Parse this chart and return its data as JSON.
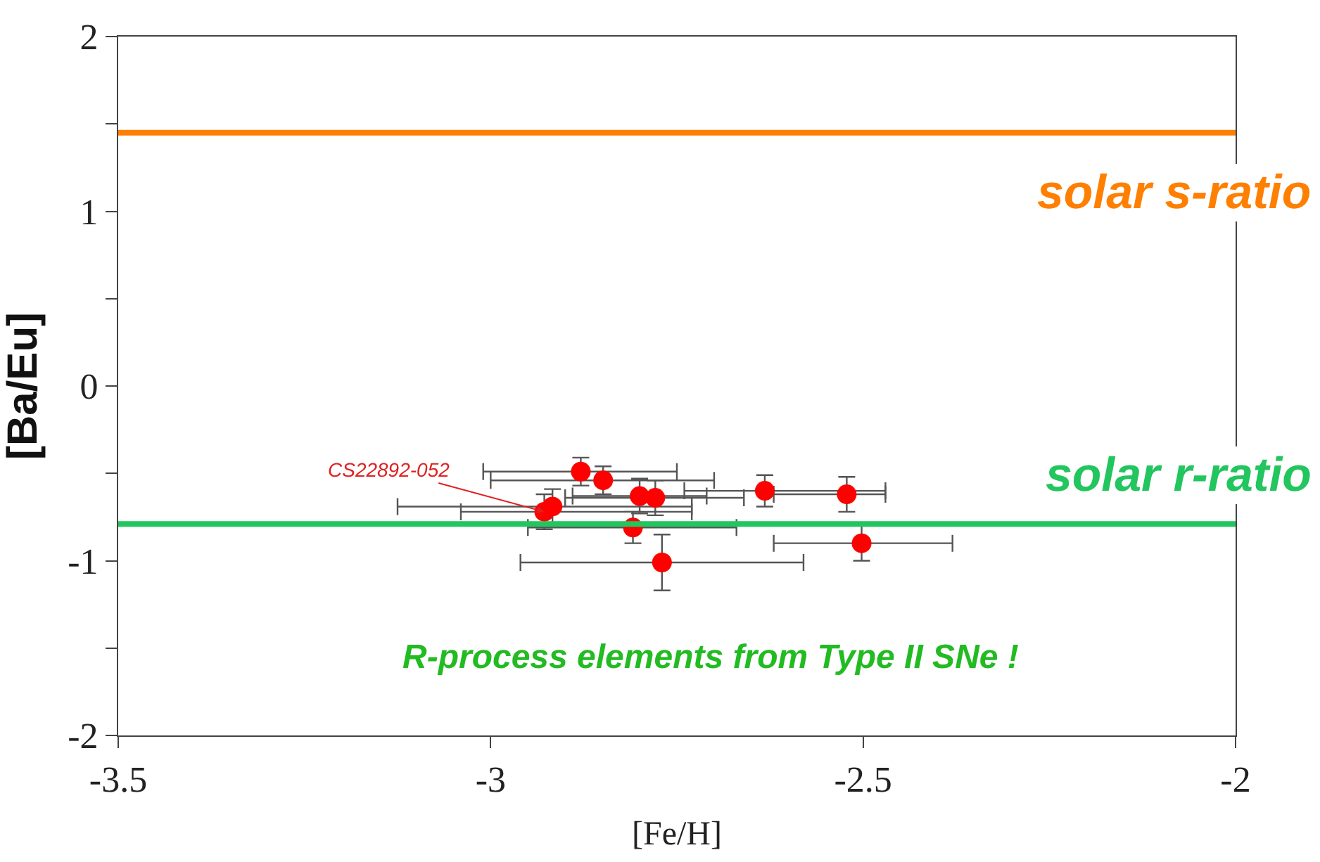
{
  "chart_data": {
    "type": "scatter",
    "xlabel": "[Fe/H]",
    "ylabel": "[Ba/Eu]",
    "x": [
      -2.879,
      -2.849,
      -2.8,
      -2.779,
      -2.928,
      -2.917,
      -2.809,
      -2.77,
      -2.632,
      -2.522,
      -2.502
    ],
    "values": [
      -0.49,
      -0.54,
      -0.63,
      -0.64,
      -0.72,
      -0.69,
      -0.81,
      -1.01,
      -0.6,
      -0.62,
      -0.9
    ],
    "errors": [
      0.08,
      0.08,
      0.1,
      0.1,
      0.1,
      0.1,
      0.09,
      0.16,
      0.09,
      0.1,
      0.1
    ],
    "xerrors": [
      [
        -3.01,
        -2.75
      ],
      [
        -3.0,
        -2.7
      ],
      [
        -2.89,
        -2.71
      ],
      [
        -2.9,
        -2.66
      ],
      [
        -3.04,
        -2.73
      ],
      [
        -3.125,
        -2.73
      ],
      [
        -2.95,
        -2.67
      ],
      [
        -2.96,
        -2.58
      ],
      [
        -2.74,
        -2.47
      ],
      [
        -2.62,
        -2.47
      ],
      [
        -2.62,
        -2.38
      ]
    ],
    "color": "#ff0000",
    "marker": "circle",
    "xlim": [
      -3.5,
      -2
    ],
    "xticks": [
      -3.5,
      -3,
      -2.5,
      -2
    ],
    "ylim": [
      -2,
      2
    ],
    "yticks": [
      -2,
      {
        "value": -1.5,
        "label": null
      },
      -1,
      {
        "value": -0.5,
        "label": null
      },
      0,
      {
        "value": 0.5,
        "label": null
      },
      1,
      {
        "value": 1.5,
        "label": null
      },
      2
    ],
    "ref_lines": [
      {
        "axis": "y",
        "value": 1.45,
        "label": "solar s-ratio",
        "color": "#ff7f00"
      },
      {
        "axis": "y",
        "value": -0.79,
        "label": "solar r-ratio",
        "color": "#22c55e"
      }
    ],
    "annotations": [
      {
        "text": "CS22892-052",
        "x": -2.928,
        "y": -0.72
      },
      "R-process elements from Type II SNe !"
    ],
    "legend": false
  }
}
